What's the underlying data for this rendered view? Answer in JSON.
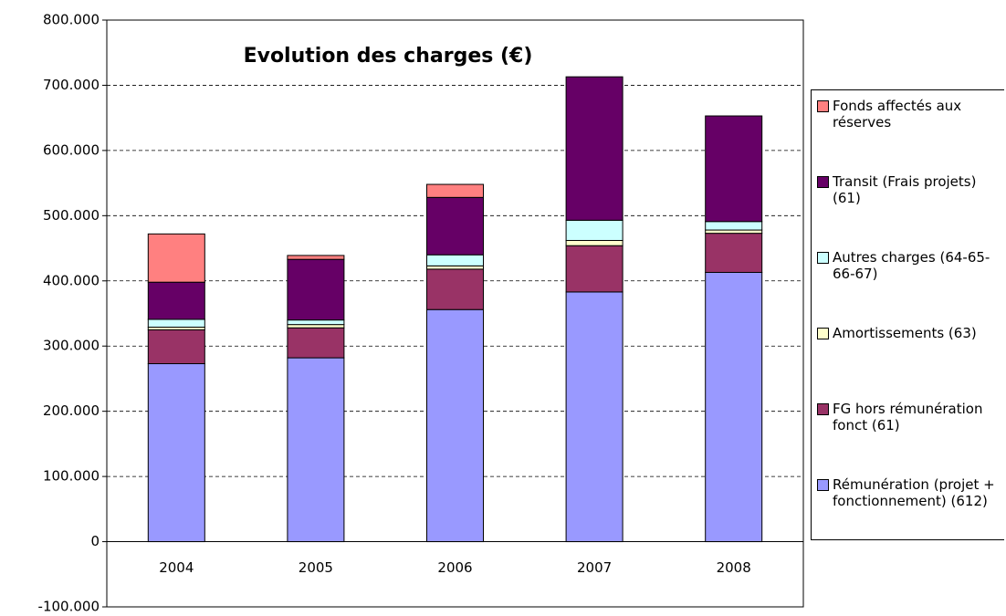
{
  "chart_data": {
    "type": "bar",
    "stacked": true,
    "title": "Evolution des charges (€)",
    "categories": [
      "2004",
      "2005",
      "2006",
      "2007",
      "2008"
    ],
    "series": [
      {
        "name": "Rémunération (projet + fonctionnement) (612)",
        "color": "#9999ff",
        "values": [
          273000,
          282000,
          356000,
          383000,
          413000
        ]
      },
      {
        "name": "FG hors rémunération fonct (61)",
        "color": "#993366",
        "values": [
          52000,
          46000,
          62000,
          71000,
          60000
        ]
      },
      {
        "name": "Amortissements (63)",
        "color": "#ffffcc",
        "values": [
          4000,
          5000,
          5000,
          8000,
          5000
        ]
      },
      {
        "name": "Autres charges (64-65-66-67)",
        "color": "#ccffff",
        "values": [
          12000,
          7000,
          17000,
          31000,
          13000
        ]
      },
      {
        "name": "Transit (Frais projets) (61)",
        "color": "#660066",
        "values": [
          57000,
          93000,
          88000,
          220000,
          162000
        ]
      },
      {
        "name": "Fonds affectés aux réserves",
        "color": "#ff8080",
        "values": [
          74000,
          6000,
          20000,
          0,
          0
        ]
      }
    ],
    "ylim": [
      -100000,
      800000
    ],
    "yticks": [
      {
        "value": -100000,
        "label": "-100.000"
      },
      0,
      {
        "value": 100000,
        "label": "100.000"
      },
      {
        "value": 200000,
        "label": "200.000"
      },
      {
        "value": 300000,
        "label": "300.000"
      },
      {
        "value": 400000,
        "label": "400.000"
      },
      {
        "value": 500000,
        "label": "500.000"
      },
      {
        "value": 600000,
        "label": "600.000"
      },
      {
        "value": 700000,
        "label": "700.000"
      },
      {
        "value": 800000,
        "label": "800.000"
      }
    ],
    "grid": true,
    "legend": "right"
  }
}
